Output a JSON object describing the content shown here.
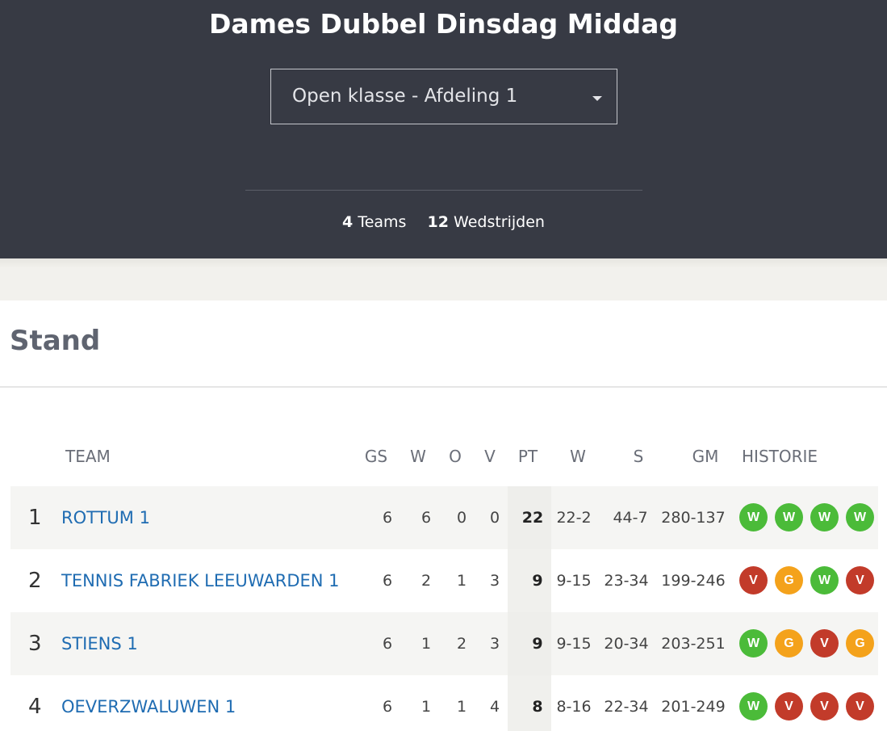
{
  "header": {
    "title": "Dames Dubbel Dinsdag Middag",
    "division_select": {
      "value": "Open klasse - Afdeling 1"
    },
    "stats": {
      "teams_count": "4",
      "teams_label": "Teams",
      "matches_count": "12",
      "matches_label": "Wedstrijden"
    }
  },
  "section": {
    "title": "Stand"
  },
  "table": {
    "headers": {
      "team": "TEAM",
      "gs": "GS",
      "w": "W",
      "o": "O",
      "v": "V",
      "pt": "PT",
      "w2": "W",
      "s": "S",
      "gm": "GM",
      "historie": "HISTORIE"
    },
    "rows": [
      {
        "pos": "1",
        "team": "ROTTUM 1",
        "gs": "6",
        "w": "6",
        "o": "0",
        "v": "0",
        "pt": "22",
        "w2": "22-2",
        "s": "44-7",
        "gm": "280-137",
        "history": [
          "W",
          "W",
          "W",
          "W"
        ]
      },
      {
        "pos": "2",
        "team": "TENNIS FABRIEK LEEUWARDEN 1",
        "gs": "6",
        "w": "2",
        "o": "1",
        "v": "3",
        "pt": "9",
        "w2": "9-15",
        "s": "23-34",
        "gm": "199-246",
        "history": [
          "V",
          "G",
          "W",
          "V"
        ]
      },
      {
        "pos": "3",
        "team": "STIENS 1",
        "gs": "6",
        "w": "1",
        "o": "2",
        "v": "3",
        "pt": "9",
        "w2": "9-15",
        "s": "20-34",
        "gm": "203-251",
        "history": [
          "W",
          "G",
          "V",
          "G"
        ]
      },
      {
        "pos": "4",
        "team": "OEVERZWALUWEN 1",
        "gs": "6",
        "w": "1",
        "o": "1",
        "v": "4",
        "pt": "8",
        "w2": "8-16",
        "s": "22-34",
        "gm": "201-249",
        "history": [
          "W",
          "V",
          "V",
          "V"
        ]
      }
    ]
  },
  "colors": {
    "header_bg": "#373a44",
    "link": "#1f6cb2",
    "win": "#4bbb39",
    "draw": "#f4a21b",
    "loss": "#c23b2a"
  }
}
